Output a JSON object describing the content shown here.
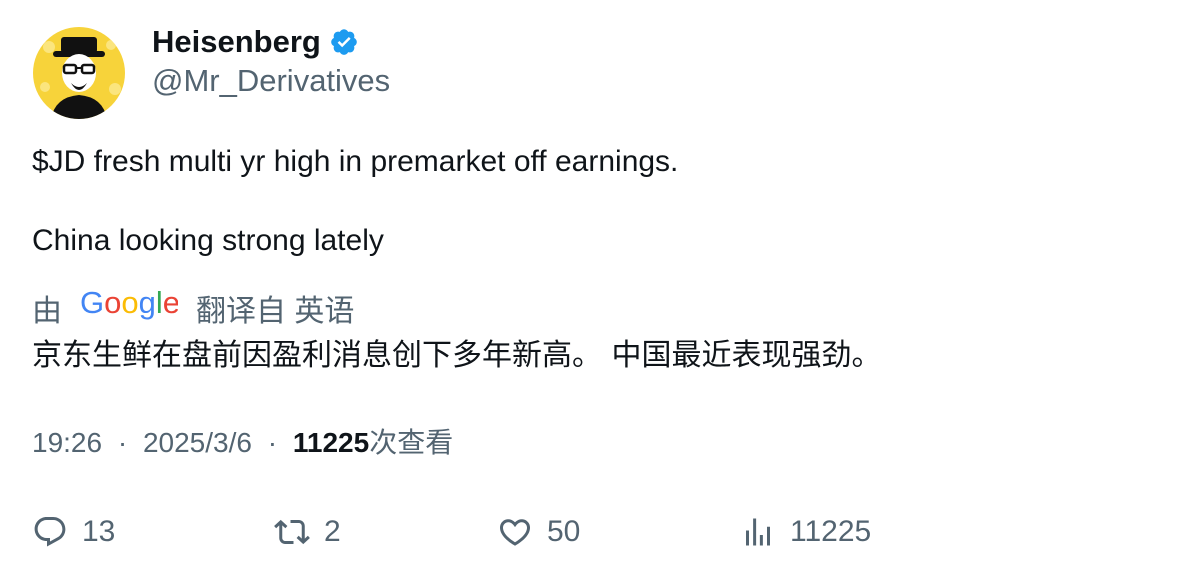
{
  "author": {
    "name": "Heisenberg",
    "handle": "@Mr_Derivatives",
    "verified": true,
    "avatar_icon": "heisenberg-avatar",
    "avatar_bg": "#f7d33a"
  },
  "tweet": {
    "lines": [
      "$JD fresh multi yr high in premarket off earnings.",
      "China looking strong lately"
    ]
  },
  "translation": {
    "prefix": "由",
    "provider": "Google",
    "suffix": "翻译自 英语",
    "text": "京东生鲜在盘前因盈利消息创下多年新高。 中国最近表现强劲。"
  },
  "meta": {
    "time": "19:26",
    "separator": "·",
    "date": "2025/3/6",
    "views_count": "11225",
    "views_label": "次查看"
  },
  "actions": {
    "replies": "13",
    "retweets": "2",
    "likes": "50",
    "views": "11225"
  },
  "colors": {
    "text": "#0f1419",
    "secondary": "#536471",
    "verified": "#1d9bf0"
  }
}
